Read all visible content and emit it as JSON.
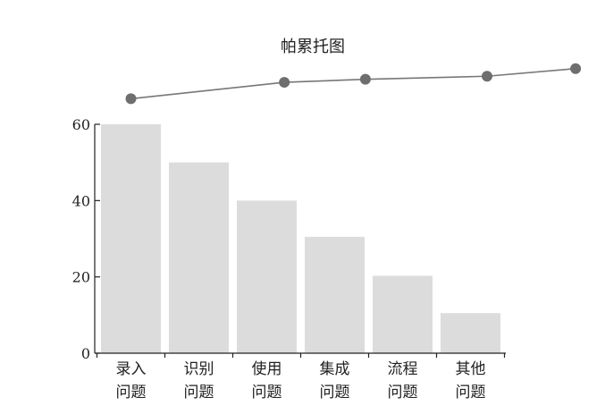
{
  "chart_data": {
    "type": "bar",
    "title": "帕累托图",
    "categories": [
      [
        "录入",
        "问题"
      ],
      [
        "识别",
        "问题"
      ],
      [
        "使用",
        "问题"
      ],
      [
        "集成",
        "问题"
      ],
      [
        "流程",
        "问题"
      ],
      [
        "其他",
        "问题"
      ]
    ],
    "values": [
      60,
      50,
      40,
      30.5,
      20.3,
      10.5
    ],
    "ylim": [
      0,
      60
    ],
    "yticks": [
      0,
      20,
      40,
      60
    ],
    "line_series": {
      "x_positions": [
        0,
        2.27,
        3.47,
        5.27,
        6.58
      ],
      "values": [
        66.7,
        71.0,
        71.8,
        72.6,
        74.6
      ]
    },
    "grid": false,
    "colors": {
      "bar": "#dcdcdc",
      "line": "#777777",
      "marker": "#6e6e6e",
      "axis": "#222222"
    }
  }
}
